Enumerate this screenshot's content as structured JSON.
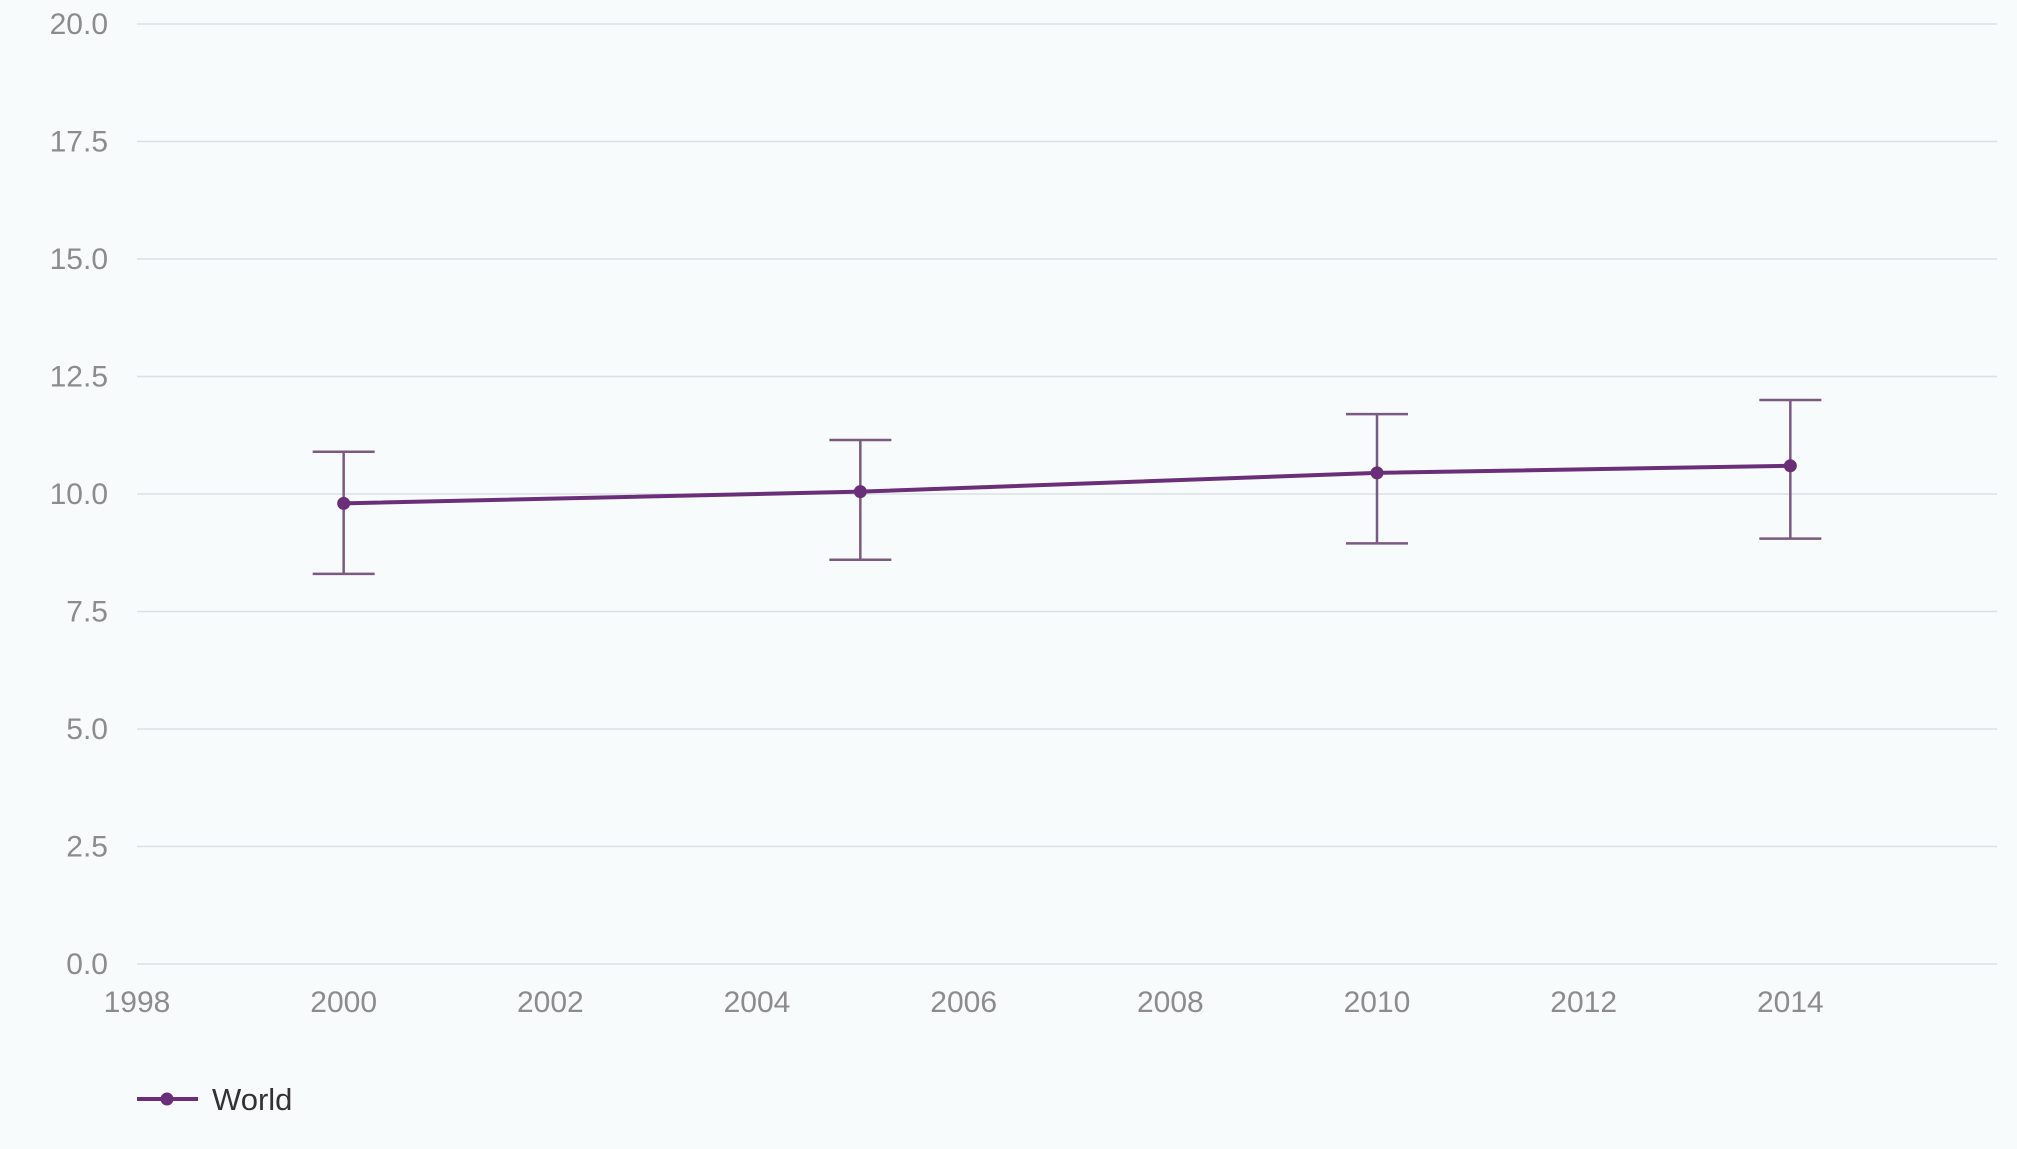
{
  "chart_data": {
    "type": "line",
    "title": "",
    "xlabel": "",
    "ylabel": "",
    "xlim": [
      1998,
      2016
    ],
    "ylim": [
      0,
      20
    ],
    "grid": true,
    "legend_position": "bottom-left",
    "x_ticks": [
      "1998",
      "2000",
      "2002",
      "2004",
      "2006",
      "2008",
      "2010",
      "2012",
      "2014"
    ],
    "y_ticks": [
      "0.0",
      "2.5",
      "5.0",
      "7.5",
      "10.0",
      "12.5",
      "15.0",
      "17.5",
      "20.0"
    ],
    "series": [
      {
        "name": "World",
        "color": "#6b2f7a",
        "error_color": "#7a5a80",
        "points": [
          {
            "x": 2000,
            "y": 9.8,
            "lower": 8.3,
            "upper": 10.9
          },
          {
            "x": 2005,
            "y": 10.05,
            "lower": 8.6,
            "upper": 11.15
          },
          {
            "x": 2010,
            "y": 10.45,
            "lower": 8.95,
            "upper": 11.7
          },
          {
            "x": 2014,
            "y": 10.6,
            "lower": 9.05,
            "upper": 12.0
          }
        ]
      }
    ]
  }
}
